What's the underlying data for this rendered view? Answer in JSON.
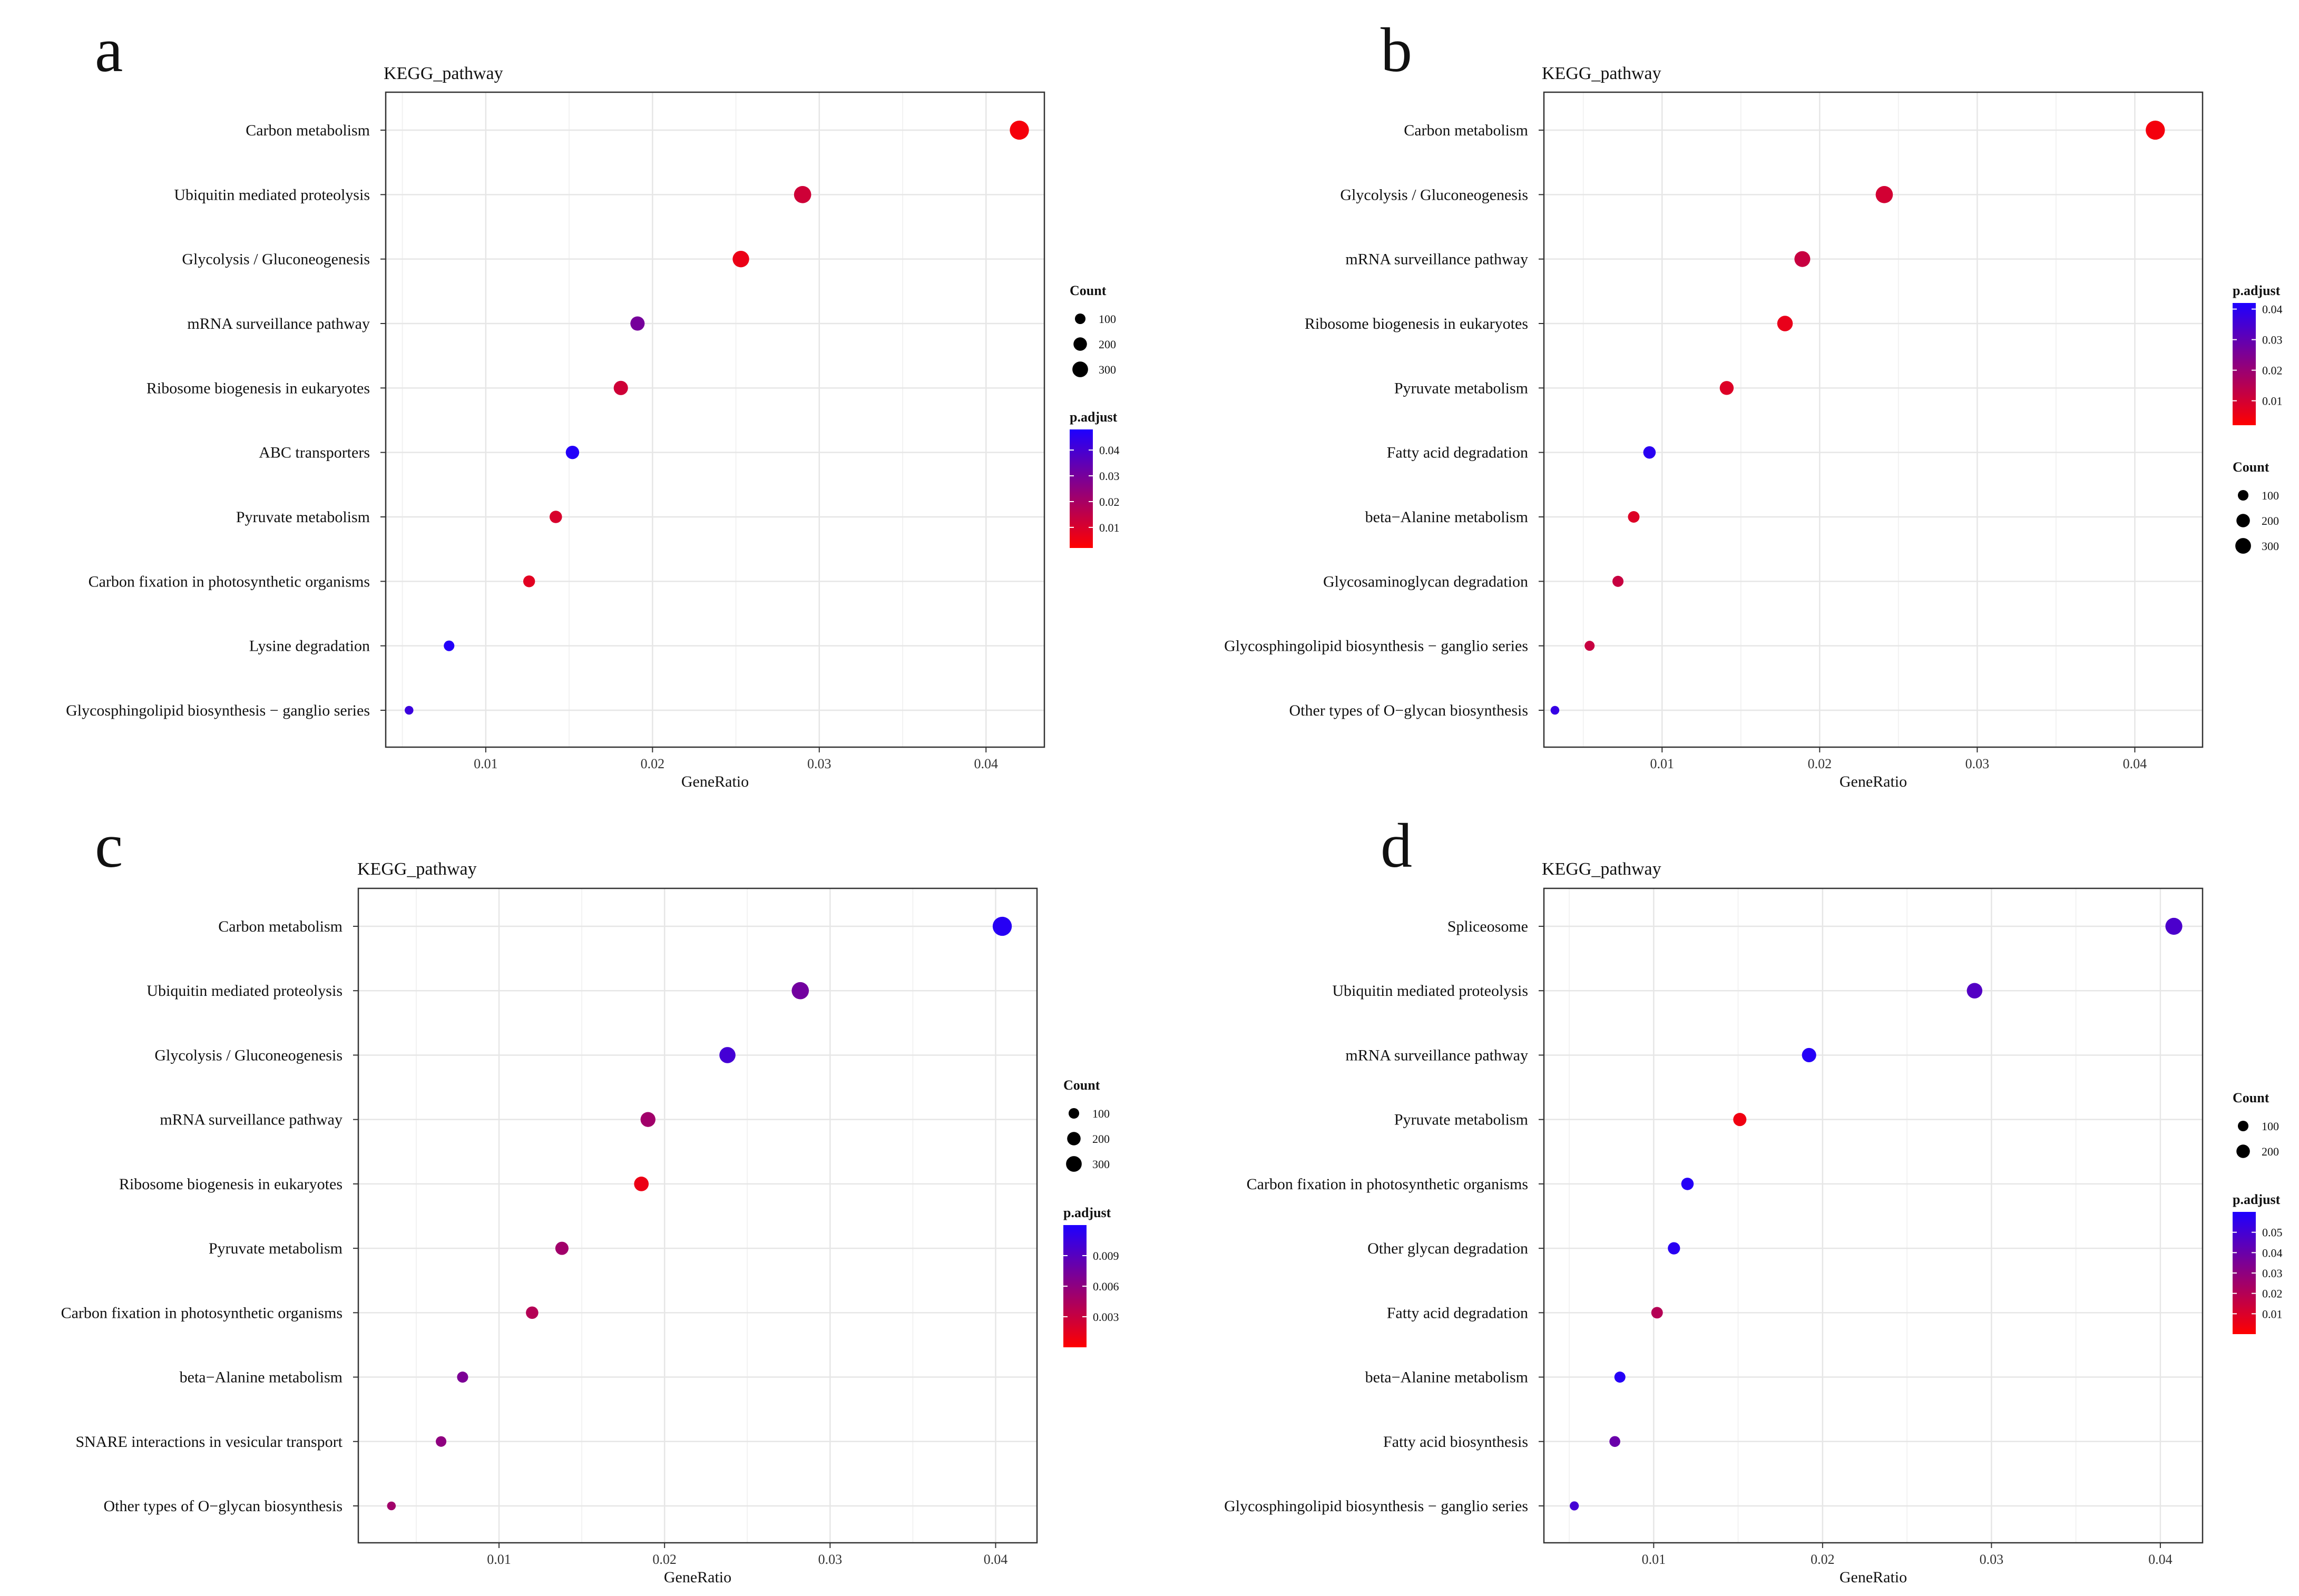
{
  "chart_data": [
    {
      "type": "scatter",
      "panel": "a",
      "title": "KEGG_pathway",
      "xlabel": "GeneRatio",
      "xlim": [
        0.004,
        0.0435
      ],
      "xticks": [
        0.01,
        0.02,
        0.03,
        0.04
      ],
      "xtick_labels": [
        "0.01",
        "0.02",
        "0.03",
        "0.04"
      ],
      "categories": [
        "Carbon metabolism",
        "Ubiquitin mediated proteolysis",
        "Glycolysis / Gluconeogenesis",
        "mRNA surveillance pathway",
        "Ribosome biogenesis in eukaryotes",
        "ABC transporters",
        "Pyruvate metabolism",
        "Carbon fixation in photosynthetic organisms",
        "Lysine degradation",
        "Glycosphingolipid biosynthesis − ganglio series"
      ],
      "gene_ratio": [
        0.042,
        0.029,
        0.0253,
        0.0191,
        0.0181,
        0.0152,
        0.0142,
        0.0126,
        0.0078,
        0.0054
      ],
      "p_adjust": [
        0.004,
        0.012,
        0.006,
        0.03,
        0.012,
        0.047,
        0.01,
        0.008,
        0.047,
        0.042
      ],
      "count": [
        330,
        250,
        225,
        150,
        150,
        125,
        100,
        85,
        60,
        30
      ],
      "size_legend": {
        "title": "Count",
        "values": [
          100,
          200,
          300
        ],
        "labels": [
          "100",
          "200",
          "300"
        ]
      },
      "color_legend": {
        "title": "p.adjust",
        "min": 0.002,
        "max": 0.048,
        "ticks": [
          0.01,
          0.02,
          0.03,
          0.04
        ],
        "labels": [
          "0.01",
          "0.02",
          "0.03",
          "0.04"
        ]
      }
    },
    {
      "type": "scatter",
      "panel": "b",
      "title": "KEGG_pathway",
      "xlabel": "GeneRatio",
      "xlim": [
        0.0025,
        0.0443
      ],
      "xticks": [
        0.01,
        0.02,
        0.03,
        0.04
      ],
      "xtick_labels": [
        "0.01",
        "0.02",
        "0.03",
        "0.04"
      ],
      "categories": [
        "Carbon metabolism",
        "Glycolysis / Gluconeogenesis",
        "mRNA surveillance pathway",
        "Ribosome biogenesis in eukaryotes",
        "Pyruvate metabolism",
        "Fatty acid degradation",
        "beta−Alanine metabolism",
        "Glycosaminoglycan degradation",
        "Glycosphingolipid biosynthesis − ganglio series",
        "Other types of O−glycan biosynthesis"
      ],
      "gene_ratio": [
        0.0413,
        0.0241,
        0.0189,
        0.0178,
        0.0141,
        0.0092,
        0.0082,
        0.0072,
        0.0054,
        0.0032
      ],
      "p_adjust": [
        0.004,
        0.01,
        0.012,
        0.006,
        0.008,
        0.04,
        0.008,
        0.012,
        0.012,
        0.038
      ],
      "count": [
        330,
        250,
        200,
        190,
        140,
        100,
        80,
        70,
        50,
        30
      ],
      "size_legend": {
        "title": "Count",
        "values": [
          100,
          200,
          300
        ],
        "labels": [
          "100",
          "200",
          "300"
        ]
      },
      "color_legend": {
        "title": "p.adjust",
        "min": 0.002,
        "max": 0.042,
        "ticks": [
          0.01,
          0.02,
          0.03,
          0.04
        ],
        "labels": [
          "0.01",
          "0.02",
          "0.03",
          "0.04"
        ]
      }
    },
    {
      "type": "scatter",
      "panel": "c",
      "title": "KEGG_pathway",
      "xlabel": "GeneRatio",
      "xlim": [
        0.0015,
        0.0425
      ],
      "xticks": [
        0.01,
        0.02,
        0.03,
        0.04
      ],
      "xtick_labels": [
        "0.01",
        "0.02",
        "0.03",
        "0.04"
      ],
      "categories": [
        "Carbon metabolism",
        "Ubiquitin mediated proteolysis",
        "Glycolysis / Gluconeogenesis",
        "mRNA surveillance pathway",
        "Ribosome biogenesis in eukaryotes",
        "Pyruvate metabolism",
        "Carbon fixation in photosynthetic organisms",
        "beta−Alanine metabolism",
        "SNARE interactions in vesicular transport",
        "Other types of O−glycan biosynthesis"
      ],
      "gene_ratio": [
        0.0404,
        0.0282,
        0.0238,
        0.019,
        0.0186,
        0.0138,
        0.012,
        0.0078,
        0.0065,
        0.0035
      ],
      "p_adjust": [
        0.0115,
        0.0075,
        0.01,
        0.005,
        0.001,
        0.005,
        0.004,
        0.007,
        0.006,
        0.005
      ],
      "count": [
        330,
        250,
        210,
        170,
        160,
        120,
        100,
        70,
        60,
        30
      ],
      "size_legend": {
        "title": "Count",
        "values": [
          100,
          200,
          300
        ],
        "labels": [
          "100",
          "200",
          "300"
        ]
      },
      "color_legend": {
        "title": "p.adjust",
        "min": 0.0,
        "max": 0.012,
        "ticks": [
          0.003,
          0.006,
          0.009
        ],
        "labels": [
          "0.003",
          "0.006",
          "0.009"
        ]
      }
    },
    {
      "type": "scatter",
      "panel": "d",
      "title": "KEGG_pathway",
      "xlabel": "GeneRatio",
      "xlim": [
        0.0035,
        0.0425
      ],
      "xticks": [
        0.01,
        0.02,
        0.03,
        0.04
      ],
      "xtick_labels": [
        "0.01",
        "0.02",
        "0.03",
        "0.04"
      ],
      "categories": [
        "Spliceosome",
        "Ubiquitin mediated proteolysis",
        "mRNA surveillance pathway",
        "Pyruvate metabolism",
        "Carbon fixation in photosynthetic organisms",
        "Other glycan degradation",
        "Fatty acid degradation",
        "beta−Alanine metabolism",
        "Fatty acid biosynthesis",
        "Glycosphingolipid biosynthesis − ganglio series"
      ],
      "gene_ratio": [
        0.0408,
        0.029,
        0.0192,
        0.0151,
        0.012,
        0.0112,
        0.0102,
        0.008,
        0.0077,
        0.0053
      ],
      "p_adjust": [
        0.048,
        0.046,
        0.058,
        0.004,
        0.058,
        0.057,
        0.02,
        0.058,
        0.04,
        0.05
      ],
      "count": [
        240,
        190,
        150,
        120,
        100,
        95,
        80,
        70,
        65,
        35
      ],
      "size_legend": {
        "title": "Count",
        "values": [
          100,
          200
        ],
        "labels": [
          "100",
          "200"
        ]
      },
      "color_legend": {
        "title": "p.adjust",
        "min": 0.0,
        "max": 0.06,
        "ticks": [
          0.01,
          0.02,
          0.03,
          0.04,
          0.05
        ],
        "labels": [
          "0.01",
          "0.02",
          "0.03",
          "0.04",
          "0.05"
        ]
      }
    }
  ]
}
